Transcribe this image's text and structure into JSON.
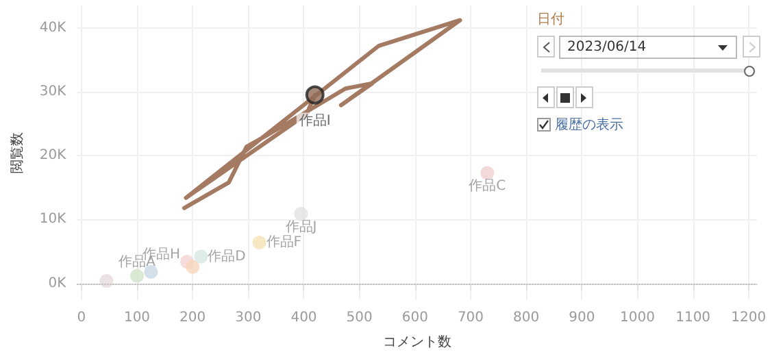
{
  "chart_data": {
    "type": "scatter",
    "xlabel": "コメント数",
    "ylabel": "閲覧数",
    "xlim": [
      -8,
      1215
    ],
    "ylim": [
      -2600,
      43500
    ],
    "xticks": [
      0,
      100,
      200,
      300,
      400,
      500,
      600,
      700,
      800,
      900,
      1000,
      1100,
      1200
    ],
    "yticks": [
      {
        "value": 0,
        "label": "0K"
      },
      {
        "value": 10000,
        "label": "10K"
      },
      {
        "value": 20000,
        "label": "20K"
      },
      {
        "value": 30000,
        "label": "30K"
      },
      {
        "value": 40000,
        "label": "40K"
      }
    ],
    "grid": true,
    "marker": "circle",
    "ref_lines": [
      {
        "axis": "y",
        "value": 0,
        "line_style": "dotted",
        "color": "#bbbbbb"
      }
    ],
    "annotations": [
      "日付",
      "2023/06/14",
      "履歴の表示"
    ],
    "series": [
      {
        "type": "line",
        "color": "#a47a62",
        "marker": "none",
        "x": [
          185,
          265,
          297,
          330,
          475,
          523,
          467,
          681,
          535,
          188,
          405,
          420
        ],
        "values": [
          11800,
          15800,
          21400,
          23000,
          30500,
          31300,
          27900,
          41200,
          37200,
          13400,
          26500,
          29500
        ]
      },
      {
        "color": "#e6dcdc",
        "x": [
          45
        ],
        "values": [
          400
        ]
      },
      {
        "name": "作品A",
        "color": "#cfe3c8",
        "x": [
          100
        ],
        "values": [
          1200
        ]
      },
      {
        "color": "#c9d8e3",
        "x": [
          125
        ],
        "values": [
          1800
        ]
      },
      {
        "name": "作品H",
        "color": "#f4d4d4",
        "x": [
          190
        ],
        "values": [
          3400
        ]
      },
      {
        "color": "#f6d6b8",
        "x": [
          200
        ],
        "values": [
          2600
        ]
      },
      {
        "name": "作品D",
        "color": "#d4e6e3",
        "x": [
          215
        ],
        "values": [
          4200
        ]
      },
      {
        "name": "作品F",
        "color": "#f5e2b4",
        "x": [
          320
        ],
        "values": [
          6400
        ]
      },
      {
        "name": "作品J",
        "color": "#e2e2e2",
        "x": [
          395
        ],
        "values": [
          10900
        ]
      },
      {
        "name": "作品C",
        "color": "#f1cfcf",
        "x": [
          730
        ],
        "values": [
          17300
        ]
      },
      {
        "name": "作品I",
        "color": "#8e6a55",
        "x": [
          420
        ],
        "values": [
          29500
        ]
      }
    ]
  }
}
